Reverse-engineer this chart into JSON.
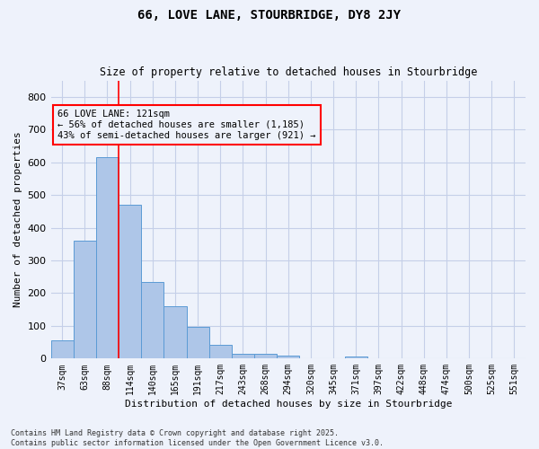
{
  "title1": "66, LOVE LANE, STOURBRIDGE, DY8 2JY",
  "title2": "Size of property relative to detached houses in Stourbridge",
  "xlabel": "Distribution of detached houses by size in Stourbridge",
  "ylabel": "Number of detached properties",
  "categories": [
    "37sqm",
    "63sqm",
    "88sqm",
    "114sqm",
    "140sqm",
    "165sqm",
    "191sqm",
    "217sqm",
    "243sqm",
    "268sqm",
    "294sqm",
    "320sqm",
    "345sqm",
    "371sqm",
    "397sqm",
    "422sqm",
    "448sqm",
    "474sqm",
    "500sqm",
    "525sqm",
    "551sqm"
  ],
  "values": [
    55,
    360,
    615,
    470,
    235,
    160,
    97,
    43,
    15,
    15,
    10,
    0,
    0,
    7,
    0,
    0,
    0,
    0,
    0,
    0,
    0
  ],
  "bar_color": "#aec6e8",
  "bar_edge_color": "#5b9bd5",
  "vline_color": "red",
  "vline_x": 3.0,
  "annotation_text": "66 LOVE LANE: 121sqm\n← 56% of detached houses are smaller (1,185)\n43% of semi-detached houses are larger (921) →",
  "box_color": "red",
  "ylim": [
    0,
    850
  ],
  "yticks": [
    0,
    100,
    200,
    300,
    400,
    500,
    600,
    700,
    800
  ],
  "footer1": "Contains HM Land Registry data © Crown copyright and database right 2025.",
  "footer2": "Contains public sector information licensed under the Open Government Licence v3.0.",
  "bg_color": "#eef2fb",
  "grid_color": "#c5cfe8"
}
